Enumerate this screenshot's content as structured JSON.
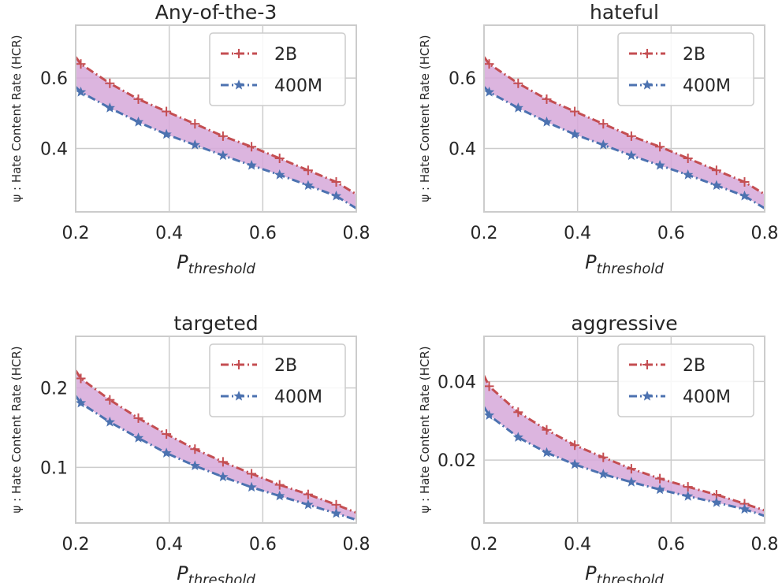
{
  "chart_data": [
    {
      "type": "line",
      "title": "Any-of-the-3",
      "xlabel": "P",
      "xlabel_sub": "threshold",
      "ylabel": "ψ : Hate Content Rate (HCR)",
      "xlim": [
        0.2,
        0.8
      ],
      "ylim": [
        0.22,
        0.75
      ],
      "xticks": [
        0.2,
        0.4,
        0.6,
        0.8
      ],
      "xtick_labels": [
        "0.2",
        "0.4",
        "0.6",
        "0.8"
      ],
      "yticks": [
        0.4,
        0.6
      ],
      "ytick_labels": [
        "0.4",
        "0.6"
      ],
      "legend_position": "upper right",
      "fill_between": true,
      "fill_color": "#d6a8d9",
      "x": [
        0.2,
        0.211,
        0.273,
        0.334,
        0.394,
        0.455,
        0.515,
        0.576,
        0.636,
        0.697,
        0.757,
        0.8
      ],
      "series": [
        {
          "name": "2B",
          "color": "#c44e52",
          "marker": "plus",
          "values": [
            0.66,
            0.64,
            0.585,
            0.54,
            0.505,
            0.47,
            0.435,
            0.405,
            0.372,
            0.338,
            0.305,
            0.27
          ]
        },
        {
          "name": "400M",
          "color": "#4c72b0",
          "marker": "star",
          "values": [
            0.575,
            0.56,
            0.515,
            0.475,
            0.44,
            0.41,
            0.38,
            0.352,
            0.325,
            0.295,
            0.265,
            0.23
          ]
        }
      ]
    },
    {
      "type": "line",
      "title": "hateful",
      "xlabel": "P",
      "xlabel_sub": "threshold",
      "ylabel": "ψ : Hate Content Rate (HCR)",
      "xlim": [
        0.2,
        0.8
      ],
      "ylim": [
        0.22,
        0.75
      ],
      "xticks": [
        0.2,
        0.4,
        0.6,
        0.8
      ],
      "xtick_labels": [
        "0.2",
        "0.4",
        "0.6",
        "0.8"
      ],
      "yticks": [
        0.4,
        0.6
      ],
      "ytick_labels": [
        "0.4",
        "0.6"
      ],
      "legend_position": "upper right",
      "fill_between": true,
      "fill_color": "#d6a8d9",
      "x": [
        0.2,
        0.211,
        0.273,
        0.334,
        0.394,
        0.455,
        0.515,
        0.576,
        0.636,
        0.697,
        0.757,
        0.8
      ],
      "series": [
        {
          "name": "2B",
          "color": "#c44e52",
          "marker": "plus",
          "values": [
            0.66,
            0.64,
            0.585,
            0.54,
            0.505,
            0.47,
            0.435,
            0.405,
            0.372,
            0.338,
            0.305,
            0.27
          ]
        },
        {
          "name": "400M",
          "color": "#4c72b0",
          "marker": "star",
          "values": [
            0.575,
            0.56,
            0.515,
            0.475,
            0.44,
            0.41,
            0.38,
            0.352,
            0.325,
            0.295,
            0.265,
            0.23
          ]
        }
      ]
    },
    {
      "type": "line",
      "title": "targeted",
      "xlabel": "P",
      "xlabel_sub": "threshold",
      "ylabel": "ψ : Hate Content Rate (HCR)",
      "xlim": [
        0.2,
        0.8
      ],
      "ylim": [
        0.03,
        0.265
      ],
      "xticks": [
        0.2,
        0.4,
        0.6,
        0.8
      ],
      "xtick_labels": [
        "0.2",
        "0.4",
        "0.6",
        "0.8"
      ],
      "yticks": [
        0.1,
        0.2
      ],
      "ytick_labels": [
        "0.1",
        "0.2"
      ],
      "legend_position": "upper right",
      "fill_between": true,
      "fill_color": "#d6a8d9",
      "x": [
        0.2,
        0.211,
        0.273,
        0.334,
        0.394,
        0.455,
        0.515,
        0.576,
        0.636,
        0.697,
        0.757,
        0.8
      ],
      "series": [
        {
          "name": "2B",
          "color": "#c44e52",
          "marker": "plus",
          "values": [
            0.222,
            0.212,
            0.185,
            0.162,
            0.142,
            0.123,
            0.107,
            0.092,
            0.078,
            0.066,
            0.053,
            0.043
          ]
        },
        {
          "name": "400M",
          "color": "#4c72b0",
          "marker": "star",
          "values": [
            0.19,
            0.181,
            0.157,
            0.137,
            0.118,
            0.102,
            0.088,
            0.075,
            0.064,
            0.053,
            0.042,
            0.034
          ]
        }
      ]
    },
    {
      "type": "line",
      "title": "aggressive",
      "xlabel": "P",
      "xlabel_sub": "threshold",
      "ylabel": "ψ : Hate Content Rate (HCR)",
      "xlim": [
        0.2,
        0.8
      ],
      "ylim": [
        0.004,
        0.0515
      ],
      "xticks": [
        0.2,
        0.4,
        0.6,
        0.8
      ],
      "xtick_labels": [
        "0.2",
        "0.4",
        "0.6",
        "0.8"
      ],
      "yticks": [
        0.02,
        0.04
      ],
      "ytick_labels": [
        "0.02",
        "0.04"
      ],
      "legend_position": "upper right",
      "fill_between": true,
      "fill_color": "#d6a8d9",
      "x": [
        0.2,
        0.211,
        0.273,
        0.334,
        0.394,
        0.455,
        0.515,
        0.576,
        0.636,
        0.697,
        0.757,
        0.8
      ],
      "series": [
        {
          "name": "2B",
          "color": "#c44e52",
          "marker": "plus",
          "values": [
            0.0415,
            0.0388,
            0.0322,
            0.0277,
            0.0238,
            0.0207,
            0.0178,
            0.0153,
            0.0132,
            0.0112,
            0.0089,
            0.0072
          ]
        },
        {
          "name": "400M",
          "color": "#4c72b0",
          "marker": "star",
          "values": [
            0.0335,
            0.0314,
            0.0258,
            0.0219,
            0.0189,
            0.0164,
            0.0144,
            0.0125,
            0.0108,
            0.0092,
            0.0075,
            0.0058
          ]
        }
      ]
    }
  ]
}
